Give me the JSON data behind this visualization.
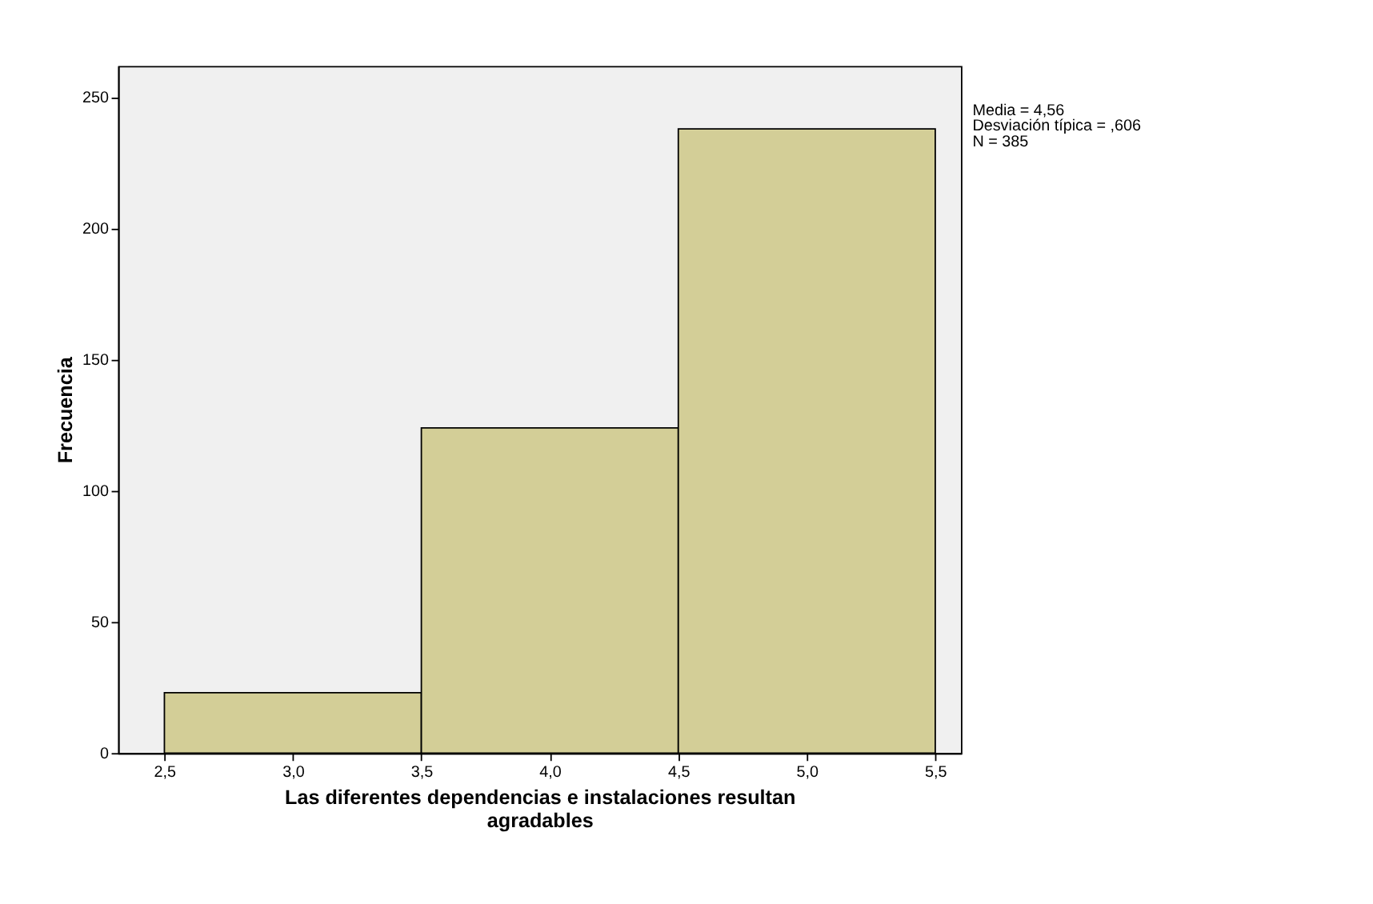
{
  "chart_data": {
    "type": "histogram",
    "xlabel": "Las diferentes dependencias e instalaciones resultan agradables",
    "ylabel": "Frecuencia",
    "bins": [
      2.5,
      3.5,
      4.5,
      5.5
    ],
    "values": [
      23,
      124,
      238
    ],
    "color": "#d3ce97",
    "xlim": [
      2.32,
      5.6
    ],
    "xticks": [
      {
        "value": 2.5,
        "label": "2,5"
      },
      {
        "value": 3.0,
        "label": "3,0"
      },
      {
        "value": 3.5,
        "label": "3,5"
      },
      {
        "value": 4.0,
        "label": "4,0"
      },
      {
        "value": 4.5,
        "label": "4,5"
      },
      {
        "value": 5.0,
        "label": "5,0"
      },
      {
        "value": 5.5,
        "label": "5,5"
      }
    ],
    "ylim": [
      0,
      262
    ],
    "yticks": [
      0,
      50,
      100,
      150,
      200,
      250
    ],
    "grid": false,
    "annotations": [
      "Media = 4,56",
      "Desviación típica = ,606",
      "N = 385"
    ]
  }
}
